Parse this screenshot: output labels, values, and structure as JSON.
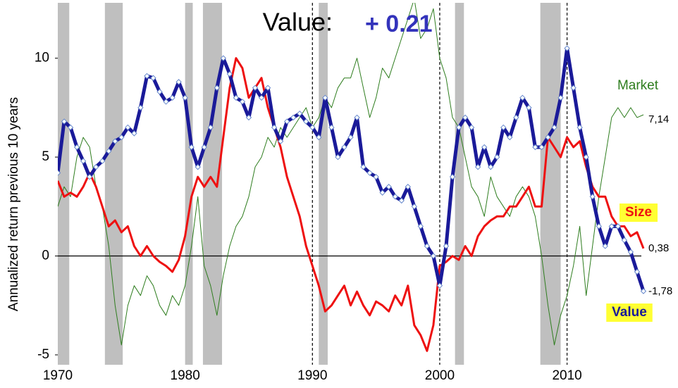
{
  "chart_data": {
    "type": "line",
    "title": "Value:",
    "title_value": "+ 0.21",
    "y_label": "Annualized return previous 10 years",
    "xlim": [
      1970,
      2016.5
    ],
    "ylim": [
      -5.5,
      12.8
    ],
    "xticks": [
      1970,
      1980,
      1990,
      2000,
      2010
    ],
    "yticks": [
      -5,
      0,
      5,
      10
    ],
    "shaded": [
      [
        1970,
        1970.9
      ],
      [
        1973.7,
        1975.1
      ],
      [
        1980,
        1980.6
      ],
      [
        1981.4,
        1982.9
      ],
      [
        1990.5,
        1991.2
      ],
      [
        2001.2,
        2001.9
      ],
      [
        2007.9,
        2009.5
      ]
    ],
    "vlines": [
      1990,
      2000,
      2010
    ],
    "x": [
      1970,
      1970.5,
      1971,
      1971.5,
      1972,
      1972.5,
      1973,
      1973.5,
      1974,
      1974.5,
      1975,
      1975.5,
      1976,
      1976.5,
      1977,
      1977.5,
      1978,
      1978.5,
      1979,
      1979.5,
      1980,
      1980.5,
      1981,
      1981.5,
      1982,
      1982.5,
      1983,
      1983.5,
      1984,
      1984.5,
      1985,
      1985.5,
      1986,
      1986.5,
      1987,
      1987.5,
      1988,
      1988.5,
      1989,
      1989.5,
      1990,
      1990.5,
      1991,
      1991.5,
      1992,
      1992.5,
      1993,
      1993.5,
      1994,
      1994.5,
      1995,
      1995.5,
      1996,
      1996.5,
      1997,
      1997.5,
      1998,
      1998.5,
      1999,
      1999.5,
      2000,
      2000.5,
      2001,
      2001.5,
      2002,
      2002.5,
      2003,
      2003.5,
      2004,
      2004.5,
      2005,
      2005.5,
      2006,
      2006.5,
      2007,
      2007.5,
      2008,
      2008.5,
      2009,
      2009.5,
      2010,
      2010.5,
      2011,
      2011.5,
      2012,
      2012.5,
      2013,
      2013.5,
      2014,
      2014.5,
      2015,
      2015.5,
      2016
    ],
    "series": [
      {
        "name": "Market",
        "color": "#2e7d1e",
        "width": 1,
        "end_label": "7,14",
        "values": [
          2.5,
          3.5,
          3.0,
          5.0,
          6.0,
          5.5,
          3.5,
          2.5,
          0.5,
          -2.5,
          -4.5,
          -2.5,
          -1.5,
          -2.0,
          -1.0,
          -1.5,
          -2.5,
          -3.0,
          -2.0,
          -2.5,
          -1.5,
          0.5,
          3.0,
          -0.5,
          -1.5,
          -3.0,
          -1.0,
          0.5,
          1.5,
          2.0,
          3.0,
          4.5,
          5.0,
          6.0,
          5.5,
          6.5,
          6.0,
          6.5,
          7.0,
          7.5,
          6.5,
          7.0,
          8.0,
          7.5,
          8.5,
          9.0,
          9.0,
          10.0,
          8.5,
          7.0,
          8.0,
          9.5,
          9.0,
          10.0,
          11.0,
          12.0,
          13.0,
          11.0,
          11.5,
          12.5,
          10.0,
          9.0,
          7.0,
          6.5,
          5.0,
          3.5,
          3.0,
          2.0,
          4.0,
          3.0,
          2.5,
          2.0,
          3.0,
          3.5,
          3.0,
          2.0,
          0.0,
          -2.5,
          -4.5,
          -3.0,
          -2.0,
          -0.5,
          1.5,
          -2.0,
          0.5,
          3.0,
          5.0,
          7.0,
          7.5,
          7.0,
          7.5,
          7.0,
          7.14
        ]
      },
      {
        "name": "Size",
        "color": "#ee1111",
        "width": 3,
        "end_label": "0,38",
        "highlight": "#ffff33",
        "values": [
          3.8,
          3.0,
          3.2,
          3.0,
          3.5,
          4.2,
          3.5,
          2.5,
          1.5,
          1.8,
          1.2,
          1.5,
          0.5,
          0.0,
          0.5,
          0.0,
          -0.3,
          -0.5,
          -0.8,
          -0.2,
          1.0,
          3.0,
          4.0,
          3.5,
          4.0,
          3.5,
          6.0,
          8.5,
          10.0,
          9.5,
          8.0,
          8.5,
          9.0,
          7.5,
          6.5,
          5.5,
          4.0,
          3.0,
          2.0,
          0.5,
          -0.5,
          -1.5,
          -2.8,
          -2.5,
          -2.0,
          -1.5,
          -2.5,
          -1.8,
          -2.5,
          -3.0,
          -2.3,
          -2.5,
          -2.8,
          -2.0,
          -2.5,
          -1.5,
          -3.5,
          -4.0,
          -4.8,
          -3.5,
          -0.5,
          -0.3,
          0.0,
          -0.2,
          0.5,
          0.0,
          1.0,
          1.5,
          1.8,
          2.0,
          2.0,
          2.5,
          2.5,
          3.0,
          3.5,
          2.5,
          2.5,
          6.0,
          5.5,
          5.0,
          6.0,
          5.5,
          5.8,
          4.5,
          3.5,
          3.0,
          3.0,
          2.0,
          1.5,
          1.5,
          1.0,
          1.2,
          0.38
        ]
      },
      {
        "name": "Value",
        "color": "#1a1a99",
        "width": 5,
        "end_label": "-1,78",
        "highlight": "#ffff33",
        "markers": true,
        "values": [
          4.2,
          6.8,
          6.5,
          5.5,
          4.8,
          4.0,
          4.5,
          4.8,
          5.3,
          5.8,
          6.0,
          6.5,
          6.2,
          7.5,
          9.1,
          9.0,
          8.3,
          7.8,
          8.0,
          8.8,
          8.0,
          5.5,
          4.5,
          5.5,
          6.5,
          8.5,
          10.0,
          9.2,
          8.0,
          7.8,
          7.0,
          8.5,
          8.0,
          8.5,
          6.5,
          5.8,
          6.8,
          7.0,
          7.2,
          6.8,
          6.5,
          6.0,
          8.0,
          6.5,
          5.0,
          5.5,
          6.0,
          7.0,
          4.5,
          4.2,
          4.0,
          3.2,
          3.5,
          3.0,
          2.8,
          3.5,
          2.5,
          1.5,
          0.5,
          0.0,
          -1.5,
          0.5,
          4.0,
          6.5,
          7.0,
          6.5,
          4.5,
          5.5,
          4.5,
          5.0,
          6.5,
          6.0,
          7.0,
          8.0,
          7.5,
          5.5,
          5.5,
          6.0,
          6.5,
          8.0,
          10.5,
          8.5,
          6.5,
          5.0,
          3.0,
          1.5,
          0.5,
          1.5,
          1.5,
          0.8,
          0.2,
          -0.8,
          -1.78
        ]
      }
    ]
  }
}
